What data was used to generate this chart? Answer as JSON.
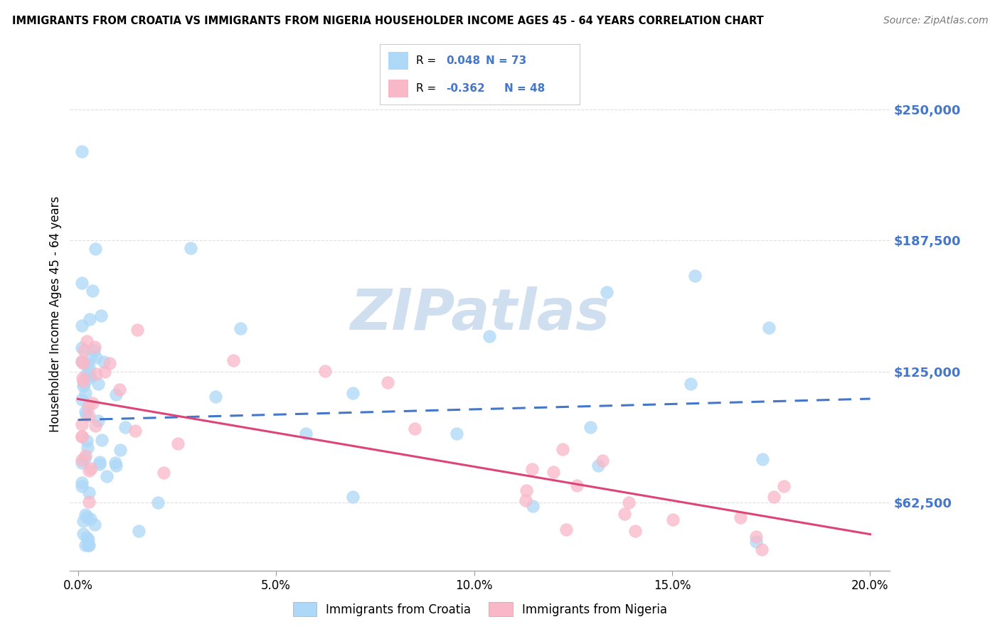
{
  "title": "IMMIGRANTS FROM CROATIA VS IMMIGRANTS FROM NIGERIA HOUSEHOLDER INCOME AGES 45 - 64 YEARS CORRELATION CHART",
  "source": "Source: ZipAtlas.com",
  "ylabel": "Householder Income Ages 45 - 64 years",
  "ytick_values": [
    62500,
    125000,
    187500,
    250000
  ],
  "ylim": [
    30000,
    275000
  ],
  "xlim": [
    -0.002,
    0.205
  ],
  "croatia_R": 0.048,
  "croatia_N": 73,
  "nigeria_R": -0.362,
  "nigeria_N": 48,
  "croatia_color": "#add8f7",
  "nigeria_color": "#f9b8c8",
  "croatia_line_color": "#4477cc",
  "nigeria_line_color": "#dd4477",
  "tick_label_color": "#4477cc",
  "background_color": "#ffffff",
  "grid_color": "#e0e0e0",
  "watermark_color": "#d0dff0",
  "legend_box_color": "#f5f5f5",
  "legend_border_color": "#cccccc"
}
